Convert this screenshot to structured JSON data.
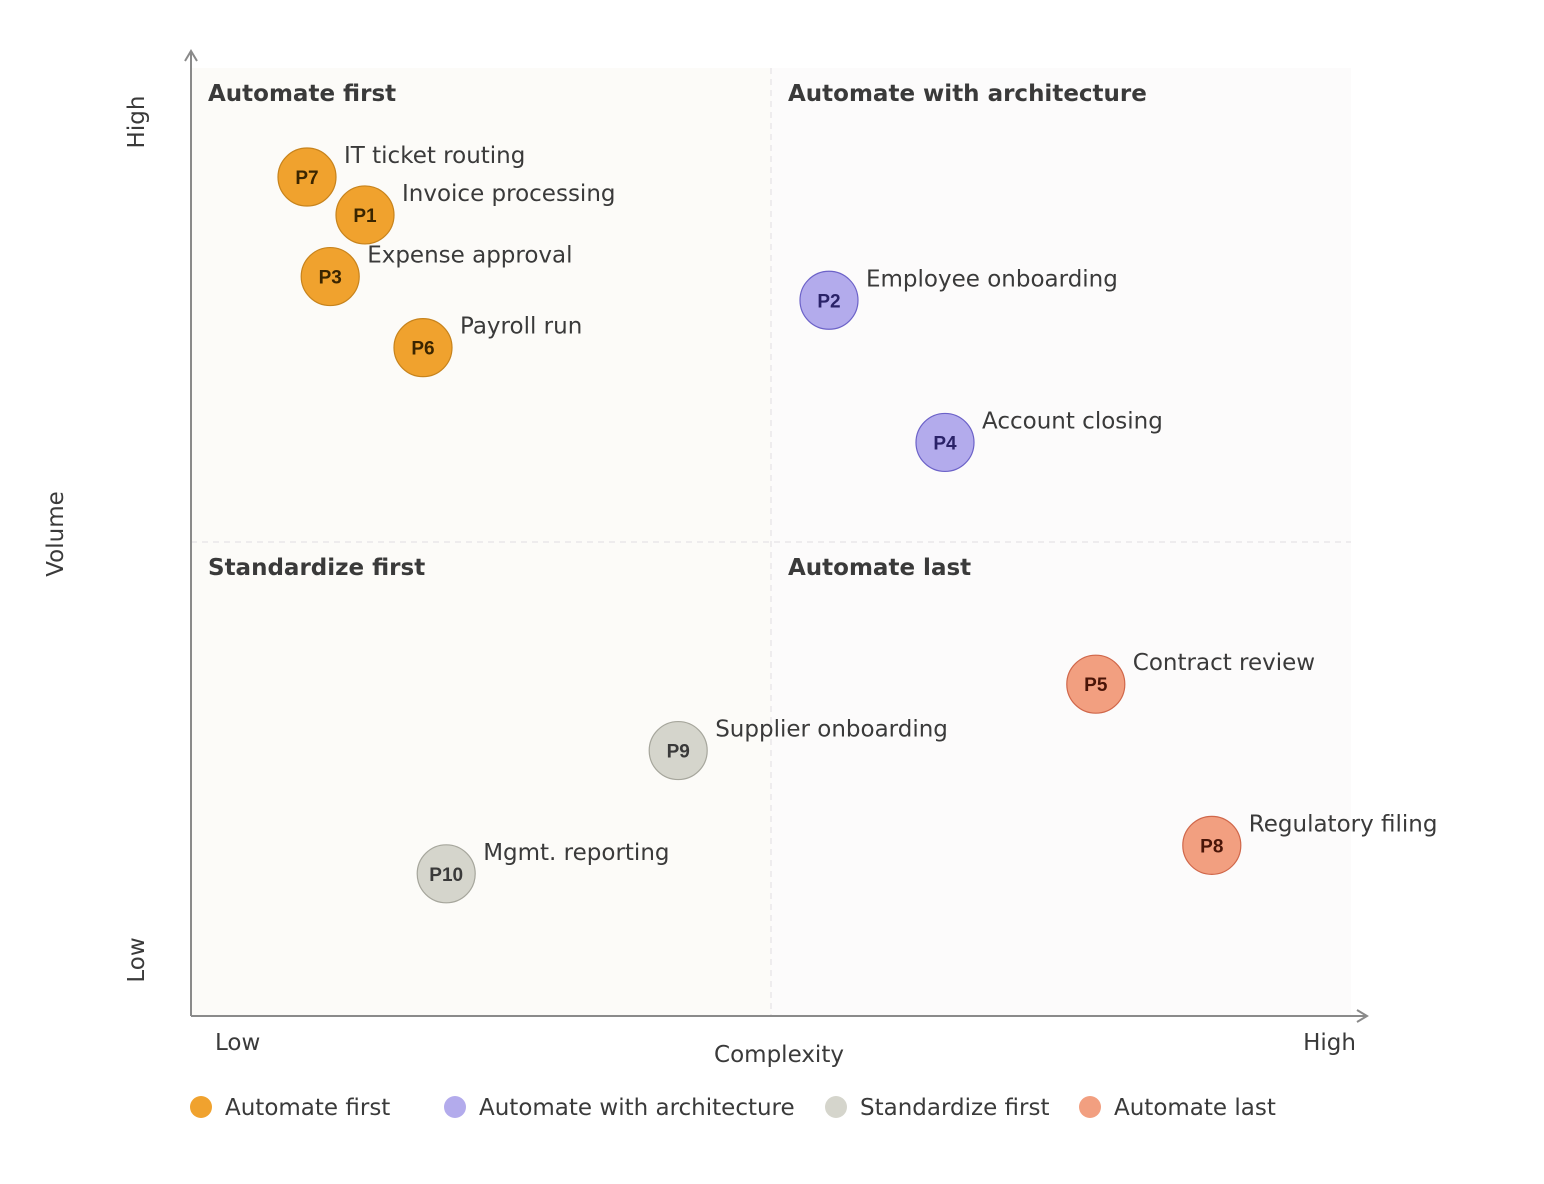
{
  "chart_data": {
    "type": "scatter",
    "title": "",
    "xlabel": "Complexity",
    "ylabel": "Volume",
    "x_ticks": {
      "low": "Low",
      "high": "High"
    },
    "y_ticks": {
      "low": "Low",
      "high": "High"
    },
    "xlim": [
      0,
      10
    ],
    "ylim": [
      0,
      10
    ],
    "quadrants": [
      {
        "key": "tl",
        "name": "Automate first"
      },
      {
        "key": "tr",
        "name": "Automate with architecture"
      },
      {
        "key": "bl",
        "name": "Standardize first"
      },
      {
        "key": "br",
        "name": "Automate last"
      }
    ],
    "colors": {
      "Automate first": {
        "fill": "#f0a22e",
        "stroke": "#c7831c",
        "text": "#3a2500"
      },
      "Automate with architecture": {
        "fill": "#b3abec",
        "stroke": "#6c62c8",
        "text": "#2a2268"
      },
      "Standardize first": {
        "fill": "#d5d5cc",
        "stroke": "#a6a69c",
        "text": "#3a3a3a"
      },
      "Automate last": {
        "fill": "#f29f80",
        "stroke": "#d0674a",
        "text": "#4a1508"
      }
    },
    "points": [
      {
        "code": "P7",
        "label": "IT ticket routing",
        "category": "Automate first",
        "x": 1.0,
        "y": 8.85
      },
      {
        "code": "P1",
        "label": "Invoice processing",
        "category": "Automate first",
        "x": 1.5,
        "y": 8.45
      },
      {
        "code": "P3",
        "label": "Expense approval",
        "category": "Automate first",
        "x": 1.2,
        "y": 7.8
      },
      {
        "code": "P6",
        "label": "Payroll run",
        "category": "Automate first",
        "x": 2.0,
        "y": 7.05
      },
      {
        "code": "P2",
        "label": "Employee onboarding",
        "category": "Automate with architecture",
        "x": 5.5,
        "y": 7.55
      },
      {
        "code": "P4",
        "label": "Account closing",
        "category": "Automate with architecture",
        "x": 6.5,
        "y": 6.05
      },
      {
        "code": "P9",
        "label": "Supplier onboarding",
        "category": "Standardize first",
        "x": 4.2,
        "y": 2.8
      },
      {
        "code": "P10",
        "label": "Mgmt. reporting",
        "category": "Standardize first",
        "x": 2.2,
        "y": 1.5
      },
      {
        "code": "P5",
        "label": "Contract review",
        "category": "Automate last",
        "x": 7.8,
        "y": 3.5
      },
      {
        "code": "P8",
        "label": "Regulatory filing",
        "category": "Automate last",
        "x": 8.8,
        "y": 1.8
      }
    ],
    "legend": [
      "Automate first",
      "Automate with architecture",
      "Standardize first",
      "Automate last"
    ],
    "legend_position": "bottom-left",
    "grid": false
  }
}
